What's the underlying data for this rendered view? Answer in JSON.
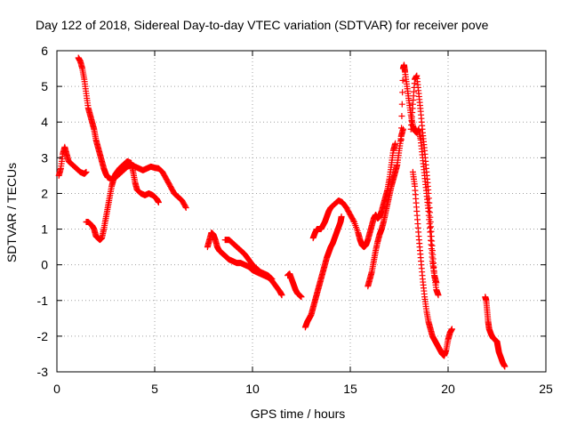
{
  "chart_data": {
    "type": "scatter",
    "title": "Day 122 of 2018, Sidereal Day-to-day VTEC variation (SDTVAR) for receiver pove",
    "xlabel": "GPS time / hours",
    "ylabel": "SDTVAR / TECUs",
    "xlim": [
      0,
      25
    ],
    "ylim": [
      -3,
      6
    ],
    "xticks": [
      "0",
      "5",
      "10",
      "15",
      "20",
      "25"
    ],
    "yticks": [
      "-3",
      "-2",
      "-1",
      "0",
      "1",
      "2",
      "3",
      "4",
      "5",
      "6"
    ],
    "grid": true,
    "marker": "plus",
    "color": "#ff0000",
    "segments": [
      [
        [
          0.1,
          2.5
        ],
        [
          0.2,
          2.7
        ],
        [
          0.3,
          3.1
        ],
        [
          0.4,
          3.3
        ],
        [
          0.5,
          3.1
        ],
        [
          0.6,
          2.9
        ],
        [
          0.8,
          2.8
        ],
        [
          1.0,
          2.7
        ],
        [
          1.2,
          2.6
        ],
        [
          1.4,
          2.55
        ],
        [
          1.5,
          2.6
        ]
      ],
      [
        [
          1.1,
          5.8
        ],
        [
          1.2,
          5.7
        ],
        [
          1.3,
          5.5
        ],
        [
          1.4,
          5.2
        ],
        [
          1.5,
          4.8
        ],
        [
          1.6,
          4.4
        ],
        [
          1.7,
          4.2
        ],
        [
          1.8,
          4.0
        ],
        [
          1.9,
          3.8
        ],
        [
          2.0,
          3.5
        ],
        [
          2.1,
          3.3
        ],
        [
          2.2,
          3.1
        ],
        [
          2.3,
          2.9
        ],
        [
          2.4,
          2.7
        ],
        [
          2.5,
          2.55
        ],
        [
          2.6,
          2.45
        ],
        [
          2.8,
          2.4
        ],
        [
          3.0,
          2.45
        ],
        [
          3.2,
          2.55
        ],
        [
          3.4,
          2.65
        ],
        [
          3.6,
          2.75
        ],
        [
          3.8,
          2.8
        ],
        [
          4.0,
          2.75
        ],
        [
          4.2,
          2.7
        ],
        [
          4.4,
          2.65
        ],
        [
          4.6,
          2.7
        ],
        [
          4.8,
          2.75
        ],
        [
          5.0,
          2.72
        ],
        [
          5.2,
          2.7
        ],
        [
          5.4,
          2.6
        ],
        [
          5.6,
          2.4
        ],
        [
          5.8,
          2.2
        ],
        [
          6.0,
          2.0
        ],
        [
          6.2,
          1.9
        ],
        [
          6.4,
          1.8
        ],
        [
          6.6,
          1.6
        ]
      ],
      [
        [
          1.5,
          1.2
        ],
        [
          1.6,
          1.2
        ],
        [
          1.8,
          1.1
        ],
        [
          1.9,
          1.0
        ],
        [
          2.0,
          0.8
        ],
        [
          2.1,
          0.75
        ],
        [
          2.2,
          0.7
        ],
        [
          2.3,
          0.75
        ],
        [
          2.4,
          1.0
        ],
        [
          2.5,
          1.3
        ],
        [
          2.6,
          1.6
        ],
        [
          2.7,
          1.9
        ],
        [
          2.8,
          2.2
        ],
        [
          2.9,
          2.4
        ],
        [
          3.0,
          2.55
        ],
        [
          3.2,
          2.7
        ],
        [
          3.4,
          2.8
        ],
        [
          3.6,
          2.9
        ],
        [
          3.8,
          2.85
        ],
        [
          3.9,
          2.6
        ],
        [
          4.0,
          2.3
        ],
        [
          4.1,
          2.1
        ],
        [
          4.3,
          2.0
        ],
        [
          4.5,
          1.95
        ],
        [
          4.7,
          2.0
        ],
        [
          4.9,
          1.95
        ],
        [
          5.1,
          1.85
        ],
        [
          5.2,
          1.75
        ]
      ],
      [
        [
          7.7,
          0.5
        ],
        [
          7.8,
          0.7
        ],
        [
          7.9,
          0.9
        ],
        [
          8.0,
          0.85
        ],
        [
          8.1,
          0.7
        ],
        [
          8.2,
          0.5
        ],
        [
          8.3,
          0.4
        ],
        [
          8.4,
          0.35
        ],
        [
          8.5,
          0.3
        ],
        [
          8.6,
          0.25
        ],
        [
          8.7,
          0.2
        ],
        [
          8.8,
          0.15
        ],
        [
          9.0,
          0.1
        ],
        [
          9.2,
          0.05
        ],
        [
          9.4,
          0.05
        ],
        [
          9.6,
          0.0
        ],
        [
          9.8,
          -0.05
        ],
        [
          10.0,
          -0.15
        ],
        [
          10.2,
          -0.2
        ],
        [
          10.4,
          -0.25
        ],
        [
          10.6,
          -0.3
        ],
        [
          10.8,
          -0.35
        ],
        [
          11.0,
          -0.45
        ],
        [
          11.2,
          -0.6
        ],
        [
          11.4,
          -0.75
        ],
        [
          11.5,
          -0.85
        ]
      ],
      [
        [
          8.6,
          0.7
        ],
        [
          8.8,
          0.7
        ],
        [
          9.0,
          0.6
        ],
        [
          9.2,
          0.5
        ],
        [
          9.4,
          0.4
        ],
        [
          9.6,
          0.3
        ],
        [
          9.8,
          0.15
        ],
        [
          10.0,
          0.0
        ],
        [
          10.2,
          -0.1
        ],
        [
          10.4,
          -0.2
        ],
        [
          10.6,
          -0.25
        ],
        [
          10.8,
          -0.3
        ],
        [
          11.0,
          -0.4
        ]
      ],
      [
        [
          11.8,
          -0.3
        ],
        [
          11.9,
          -0.25
        ],
        [
          12.0,
          -0.4
        ],
        [
          12.1,
          -0.55
        ],
        [
          12.2,
          -0.7
        ],
        [
          12.3,
          -0.8
        ],
        [
          12.4,
          -0.85
        ],
        [
          12.5,
          -0.9
        ]
      ],
      [
        [
          12.7,
          -1.75
        ],
        [
          12.8,
          -1.6
        ],
        [
          12.9,
          -1.5
        ],
        [
          13.0,
          -1.4
        ],
        [
          13.1,
          -1.2
        ],
        [
          13.2,
          -1.0
        ],
        [
          13.3,
          -0.8
        ],
        [
          13.4,
          -0.6
        ],
        [
          13.5,
          -0.4
        ],
        [
          13.6,
          -0.2
        ],
        [
          13.7,
          0.0
        ],
        [
          13.8,
          0.2
        ],
        [
          13.9,
          0.35
        ],
        [
          14.0,
          0.5
        ],
        [
          14.1,
          0.6
        ],
        [
          14.2,
          0.75
        ],
        [
          14.3,
          0.9
        ],
        [
          14.4,
          1.05
        ],
        [
          14.5,
          1.2
        ],
        [
          14.55,
          1.35
        ]
      ],
      [
        [
          13.1,
          0.75
        ],
        [
          13.2,
          0.9
        ],
        [
          13.3,
          1.0
        ],
        [
          13.4,
          1.0
        ],
        [
          13.5,
          1.0
        ],
        [
          13.6,
          1.1
        ],
        [
          13.7,
          1.2
        ],
        [
          13.8,
          1.35
        ],
        [
          13.9,
          1.5
        ],
        [
          14.0,
          1.6
        ],
        [
          14.2,
          1.7
        ],
        [
          14.4,
          1.8
        ],
        [
          14.6,
          1.75
        ],
        [
          14.8,
          1.6
        ],
        [
          15.0,
          1.4
        ],
        [
          15.2,
          1.2
        ],
        [
          15.4,
          0.9
        ],
        [
          15.5,
          0.7
        ],
        [
          15.6,
          0.55
        ],
        [
          15.7,
          0.5
        ],
        [
          15.8,
          0.55
        ],
        [
          15.9,
          0.7
        ],
        [
          16.0,
          0.9
        ],
        [
          16.1,
          1.1
        ],
        [
          16.2,
          1.3
        ],
        [
          16.3,
          1.4
        ],
        [
          16.4,
          1.3
        ],
        [
          16.5,
          1.35
        ],
        [
          16.6,
          1.5
        ],
        [
          16.7,
          1.7
        ],
        [
          16.8,
          1.9
        ],
        [
          16.9,
          2.1
        ],
        [
          17.0,
          2.4
        ],
        [
          17.1,
          2.8
        ],
        [
          17.2,
          3.2
        ],
        [
          17.3,
          3.4
        ]
      ],
      [
        [
          15.9,
          -0.6
        ],
        [
          16.0,
          -0.4
        ],
        [
          16.1,
          -0.2
        ],
        [
          16.2,
          0.1
        ],
        [
          16.3,
          0.4
        ],
        [
          16.4,
          0.65
        ],
        [
          16.5,
          0.85
        ],
        [
          16.6,
          1.0
        ],
        [
          16.7,
          1.2
        ],
        [
          16.8,
          1.45
        ],
        [
          16.9,
          1.7
        ],
        [
          17.0,
          1.95
        ],
        [
          17.1,
          2.2
        ],
        [
          17.2,
          2.4
        ],
        [
          17.3,
          2.6
        ],
        [
          17.4,
          2.8
        ],
        [
          17.5,
          3.2
        ],
        [
          17.6,
          3.6
        ],
        [
          17.7,
          3.8
        ]
      ],
      [
        [
          17.6,
          3.5
        ],
        [
          17.7,
          5.5
        ],
        [
          17.75,
          5.6
        ],
        [
          17.8,
          5.4
        ],
        [
          17.9,
          5.0
        ],
        [
          18.0,
          4.6
        ],
        [
          18.1,
          4.2
        ],
        [
          18.2,
          3.9
        ],
        [
          18.3,
          3.75
        ],
        [
          18.4,
          3.7
        ],
        [
          18.5,
          3.8
        ],
        [
          18.6,
          3.5
        ],
        [
          18.7,
          3.0
        ],
        [
          18.8,
          2.5
        ],
        [
          18.9,
          2.0
        ],
        [
          19.0,
          1.5
        ],
        [
          19.1,
          0.8
        ],
        [
          19.2,
          0.1
        ],
        [
          19.3,
          -0.3
        ],
        [
          19.4,
          -0.5
        ]
      ],
      [
        [
          18.1,
          3.8
        ],
        [
          18.2,
          4.5
        ],
        [
          18.3,
          5.2
        ],
        [
          18.4,
          5.3
        ],
        [
          18.5,
          4.8
        ],
        [
          18.6,
          4.3
        ],
        [
          18.7,
          3.7
        ],
        [
          18.8,
          3.2
        ],
        [
          18.9,
          2.6
        ],
        [
          19.0,
          2.0
        ],
        [
          19.1,
          1.2
        ],
        [
          19.2,
          0.4
        ],
        [
          19.3,
          -0.3
        ],
        [
          19.4,
          -0.7
        ],
        [
          19.5,
          -0.85
        ]
      ],
      [
        [
          18.2,
          2.6
        ],
        [
          18.3,
          2.2
        ],
        [
          18.4,
          1.5
        ],
        [
          18.5,
          0.8
        ],
        [
          18.6,
          0.2
        ],
        [
          18.7,
          -0.4
        ],
        [
          18.8,
          -0.9
        ],
        [
          18.9,
          -1.3
        ],
        [
          19.0,
          -1.6
        ],
        [
          19.1,
          -1.8
        ],
        [
          19.2,
          -2.0
        ],
        [
          19.3,
          -2.1
        ],
        [
          19.4,
          -2.2
        ],
        [
          19.5,
          -2.3
        ],
        [
          19.6,
          -2.4
        ],
        [
          19.7,
          -2.5
        ],
        [
          19.8,
          -2.55
        ],
        [
          19.9,
          -2.4
        ],
        [
          20.0,
          -2.1
        ],
        [
          20.1,
          -1.9
        ],
        [
          20.2,
          -1.8
        ]
      ],
      [
        [
          21.9,
          -0.9
        ],
        [
          21.95,
          -1.0
        ],
        [
          22.0,
          -1.3
        ],
        [
          22.05,
          -1.6
        ],
        [
          22.1,
          -1.8
        ],
        [
          22.2,
          -1.95
        ],
        [
          22.3,
          -2.05
        ],
        [
          22.4,
          -2.1
        ],
        [
          22.5,
          -2.15
        ],
        [
          22.55,
          -2.3
        ],
        [
          22.6,
          -2.45
        ],
        [
          22.7,
          -2.6
        ],
        [
          22.8,
          -2.75
        ],
        [
          22.9,
          -2.85
        ]
      ]
    ]
  }
}
